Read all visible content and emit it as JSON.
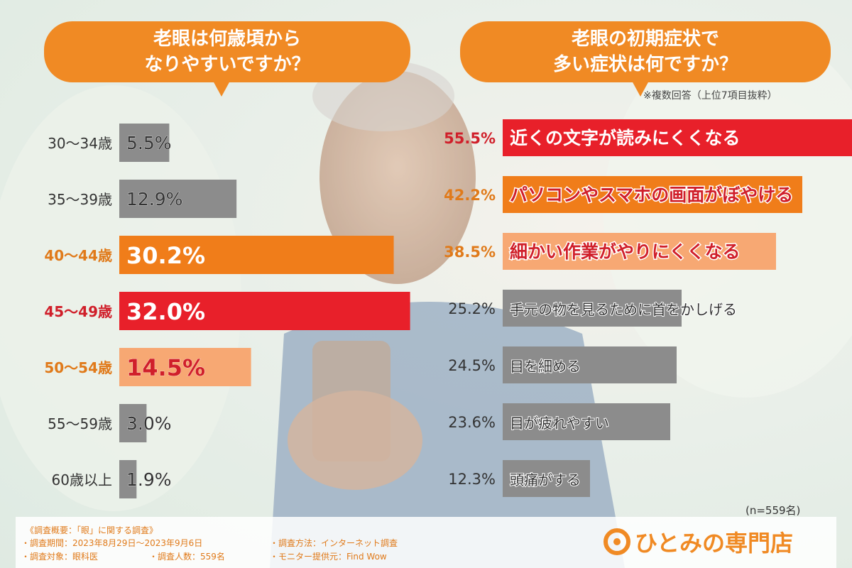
{
  "chart_data": [
    {
      "type": "bar",
      "orientation": "horizontal",
      "title": [
        "老眼は何歳頃から",
        "なりやすいですか？"
      ],
      "categories": [
        "30～34歳",
        "35～39歳",
        "40～44歳",
        "45～49歳",
        "50～54歳",
        "55～59歳",
        "60歳以上"
      ],
      "values": [
        5.5,
        12.9,
        30.2,
        32.0,
        14.5,
        3.0,
        1.9
      ],
      "value_labels": [
        "5.5%",
        "12.9%",
        "30.2%",
        "32.0%",
        "14.5%",
        "3.0%",
        "1.9%"
      ],
      "colors": [
        "#8c8c8c",
        "#8c8c8c",
        "#f07d1a",
        "#e8202a",
        "#f7a873",
        "#8c8c8c",
        "#8c8c8c"
      ],
      "label_colors": [
        "#333333",
        "#333333",
        "#e07a1a",
        "#d01f2a",
        "#e07a1a",
        "#333333",
        "#333333"
      ]
    },
    {
      "type": "bar",
      "orientation": "horizontal",
      "title": [
        "老眼の初期症状で",
        "多い症状は何ですか？"
      ],
      "note": "※複数回答（上位7項目抜粋）",
      "categories": [
        "近くの文字が読みにくくなる",
        "パソコンやスマホの画面がぼやける",
        "細かい作業がやりにくくなる",
        "手元の物を見るために首をかしげる",
        "目を細める",
        "目が疲れやすい",
        "頭痛がする"
      ],
      "values": [
        55.5,
        42.2,
        38.5,
        25.2,
        24.5,
        23.6,
        12.3
      ],
      "value_labels": [
        "55.5%",
        "42.2%",
        "38.5%",
        "25.2%",
        "24.5%",
        "23.6%",
        "12.3%"
      ],
      "colors": [
        "#e8202a",
        "#f07d1a",
        "#f7a873",
        "#8c8c8c",
        "#8c8c8c",
        "#8c8c8c",
        "#8c8c8c"
      ],
      "label_colors": [
        "#d01f2a",
        "#e07a1a",
        "#e07a1a",
        "#333333",
        "#333333",
        "#333333",
        "#333333"
      ]
    }
  ],
  "sample_size": "(n=559名)",
  "footer": {
    "heading": "《調査概要：「眼」に関する調査》",
    "period": "・調査期間：2023年8月29日～2023年9月6日",
    "target": "・調査対象：眼科医",
    "count": "・調査人数：559名",
    "method": "・調査方法：インターネット調査",
    "provider": "・モニター提供元：Find Wow"
  },
  "brand": {
    "name": "ひとみの専門店",
    "accent": "#f08a24",
    "icon": "eye-c-logo-icon"
  }
}
